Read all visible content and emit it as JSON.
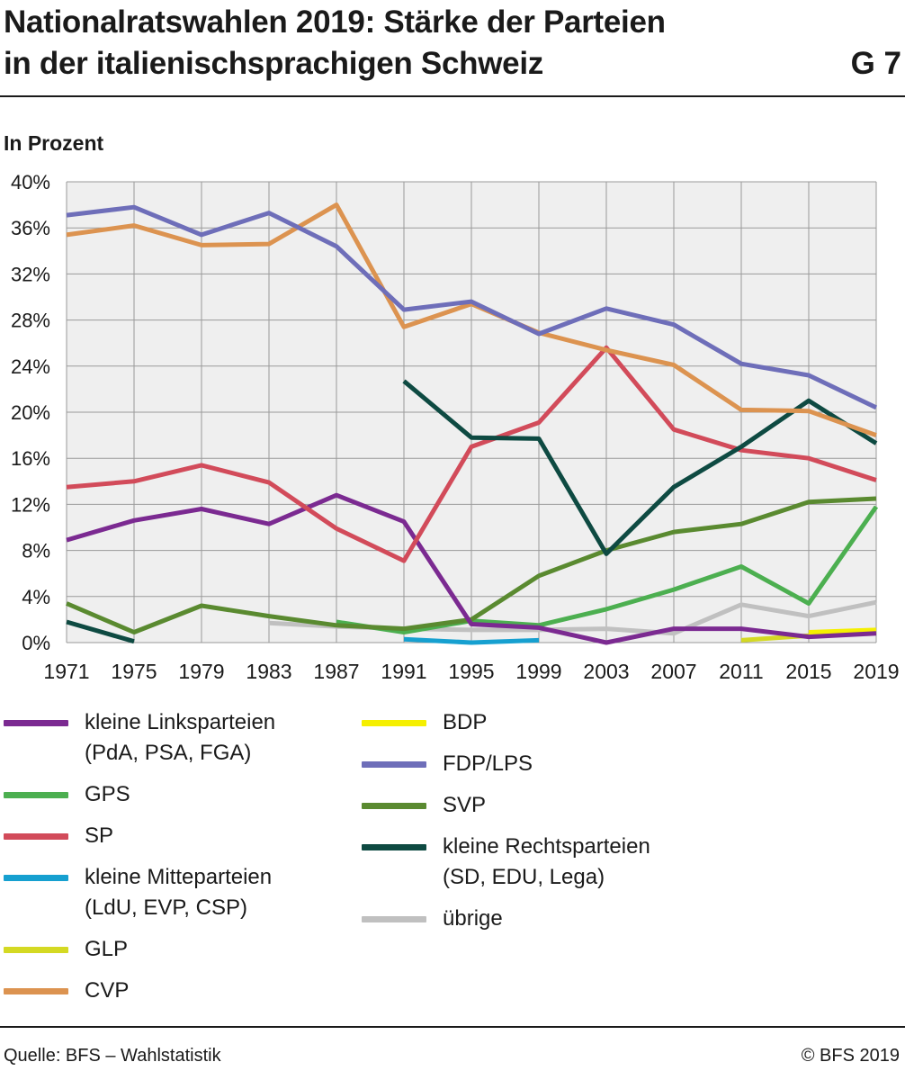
{
  "header": {
    "title_line1": "Nationalratswahlen 2019: Stärke der Parteien",
    "title_line2": "in der italienischsprachigen Schweiz",
    "graphic_number": "G 7"
  },
  "footer": {
    "source": "Quelle: BFS – Wahlstatistik",
    "copyright": "© BFS 2019"
  },
  "chart_data": {
    "type": "line",
    "ylabel": "In Prozent",
    "ylim": [
      0,
      40
    ],
    "yticks": [
      "0%",
      "4%",
      "8%",
      "12%",
      "16%",
      "20%",
      "24%",
      "28%",
      "32%",
      "36%",
      "40%"
    ],
    "x": [
      "1971",
      "1975",
      "1979",
      "1983",
      "1987",
      "1991",
      "1995",
      "1999",
      "2003",
      "2007",
      "2011",
      "2015",
      "2019"
    ],
    "grid": true,
    "series": [
      {
        "name": "kleine Linksparteien\n(PdA, PSA, FGA)",
        "color": "#7b2a91",
        "values": [
          8.9,
          10.6,
          11.6,
          10.3,
          12.8,
          10.5,
          1.6,
          1.3,
          0.0,
          1.2,
          1.2,
          0.5,
          0.8
        ]
      },
      {
        "name": "GPS",
        "color": "#4caf50",
        "values": [
          null,
          null,
          null,
          null,
          1.8,
          0.9,
          1.9,
          1.5,
          2.9,
          4.6,
          6.6,
          3.4,
          11.8
        ]
      },
      {
        "name": "SP",
        "color": "#d24b5a",
        "values": [
          13.5,
          14.0,
          15.4,
          13.9,
          9.9,
          7.1,
          17.0,
          19.1,
          25.6,
          18.5,
          16.7,
          16.0,
          14.1
        ]
      },
      {
        "name": "kleine Mitteparteien\n(LdU, EVP, CSP)",
        "color": "#16a0d0",
        "values": [
          null,
          null,
          null,
          null,
          null,
          0.3,
          0.0,
          0.2,
          null,
          null,
          null,
          null,
          null
        ]
      },
      {
        "name": "GLP",
        "color": "#d4d923",
        "values": [
          null,
          null,
          null,
          null,
          null,
          null,
          null,
          null,
          null,
          null,
          0.2,
          0.6,
          0.9
        ]
      },
      {
        "name": "CVP",
        "color": "#dc9350",
        "values": [
          35.4,
          36.2,
          34.5,
          34.6,
          38.0,
          27.4,
          29.4,
          26.9,
          25.4,
          24.1,
          20.2,
          20.1,
          18.0
        ]
      },
      {
        "name": "BDP",
        "color": "#f5ef00",
        "values": [
          null,
          null,
          null,
          null,
          null,
          null,
          null,
          null,
          null,
          null,
          null,
          0.9,
          1.1
        ]
      },
      {
        "name": "FDP/LPS",
        "color": "#6e6eb9",
        "values": [
          37.1,
          37.8,
          35.4,
          37.3,
          34.4,
          28.9,
          29.6,
          26.8,
          29.0,
          27.6,
          24.2,
          23.2,
          20.4
        ]
      },
      {
        "name": "SVP",
        "color": "#5a8a30",
        "values": [
          3.4,
          0.9,
          3.2,
          2.3,
          1.5,
          1.2,
          2.0,
          5.8,
          8.0,
          9.6,
          10.3,
          12.2,
          12.5
        ]
      },
      {
        "name": "kleine Rechtsparteien\n(SD, EDU, Lega)",
        "color": "#0e4a42",
        "values": [
          1.8,
          0.1,
          null,
          null,
          null,
          22.7,
          17.8,
          17.7,
          7.7,
          13.5,
          17.0,
          21.0,
          17.3
        ]
      },
      {
        "name": "übrige",
        "color": "#c0c0c0",
        "values": [
          null,
          null,
          null,
          1.7,
          1.4,
          1.2,
          1.1,
          1.1,
          1.2,
          0.8,
          3.3,
          2.3,
          3.5
        ]
      }
    ]
  }
}
